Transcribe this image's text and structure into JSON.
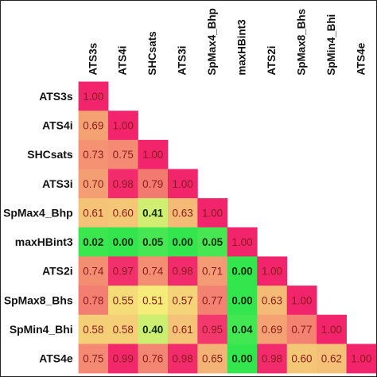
{
  "chart_data": {
    "type": "heatmap",
    "variables": [
      "ATS3s",
      "ATS4i",
      "SHCsats",
      "ATS3i",
      "SpMax4_Bhp",
      "maxHBint3",
      "ATS2i",
      "SpMax8_Bhs",
      "SpMin4_Bhi",
      "ATS4e"
    ],
    "matrix": [
      [
        1.0
      ],
      [
        0.69,
        1.0
      ],
      [
        0.73,
        0.75,
        1.0
      ],
      [
        0.7,
        0.98,
        0.79,
        1.0
      ],
      [
        0.61,
        0.6,
        0.41,
        0.63,
        1.0
      ],
      [
        0.02,
        0.0,
        0.05,
        0.0,
        0.05,
        1.0
      ],
      [
        0.74,
        0.97,
        0.74,
        0.98,
        0.71,
        0.0,
        1.0
      ],
      [
        0.78,
        0.55,
        0.51,
        0.57,
        0.77,
        0.0,
        0.63,
        1.0
      ],
      [
        0.58,
        0.58,
        0.4,
        0.61,
        0.95,
        0.04,
        0.69,
        0.77,
        1.0
      ],
      [
        0.75,
        0.99,
        0.76,
        0.98,
        0.65,
        0.0,
        0.98,
        0.6,
        0.62,
        1.0
      ]
    ],
    "number_format": "0.00",
    "layout": "lower-triangular",
    "column_label_orientation": "vertical",
    "colorscale": {
      "low": "#33e64d",
      "mid": "#f5f07a",
      "high": "#f2246b"
    },
    "text_colors": {
      "low": "#0d2b0d",
      "mid_high": "#8b1a1a"
    },
    "bold_threshold": 0.5
  }
}
